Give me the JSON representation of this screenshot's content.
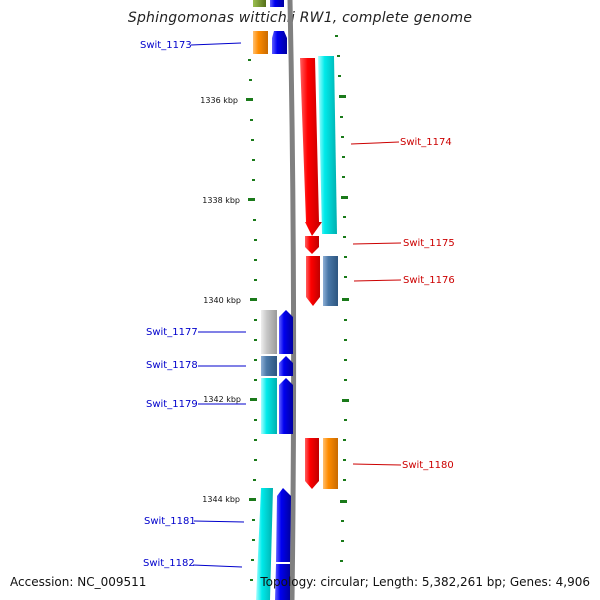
{
  "header": {
    "title": "Sphingomonas wittichii RW1, complete genome"
  },
  "footer": {
    "accession": "Accession: NC_009511",
    "topology": "Topology: circular; Length: 5,382,261 bp; Genes: 4,906"
  },
  "scale": {
    "ticks": [
      {
        "label": "1336 kbp"
      },
      {
        "label": "1338 kbp"
      },
      {
        "label": "1340 kbp"
      },
      {
        "label": "1342 kbp"
      },
      {
        "label": "1344 kbp"
      }
    ]
  },
  "genes_left": [
    {
      "label": "Swit_1173",
      "color": "#0000cc"
    },
    {
      "label": "Swit_1177",
      "color": "#0000cc"
    },
    {
      "label": "Swit_1178",
      "color": "#0000cc"
    },
    {
      "label": "Swit_1179",
      "color": "#0000cc"
    },
    {
      "label": "Swit_1181",
      "color": "#0000cc"
    },
    {
      "label": "Swit_1182",
      "color": "#0000cc"
    }
  ],
  "genes_right": [
    {
      "label": "Swit_1174",
      "color": "#cc0000"
    },
    {
      "label": "Swit_1175",
      "color": "#cc0000"
    },
    {
      "label": "Swit_1176",
      "color": "#cc0000"
    },
    {
      "label": "Swit_1180",
      "color": "#cc0000"
    }
  ],
  "colors": {
    "backbone": "#808080",
    "tick": "#1a7a1a",
    "red": "#ff0000",
    "cyan": "#00e6e6",
    "blue": "#0000ee",
    "orange": "#ff8c00",
    "steel": "#4a78a8",
    "grey": "#c8c8c8",
    "olive": "#6b8e23"
  }
}
